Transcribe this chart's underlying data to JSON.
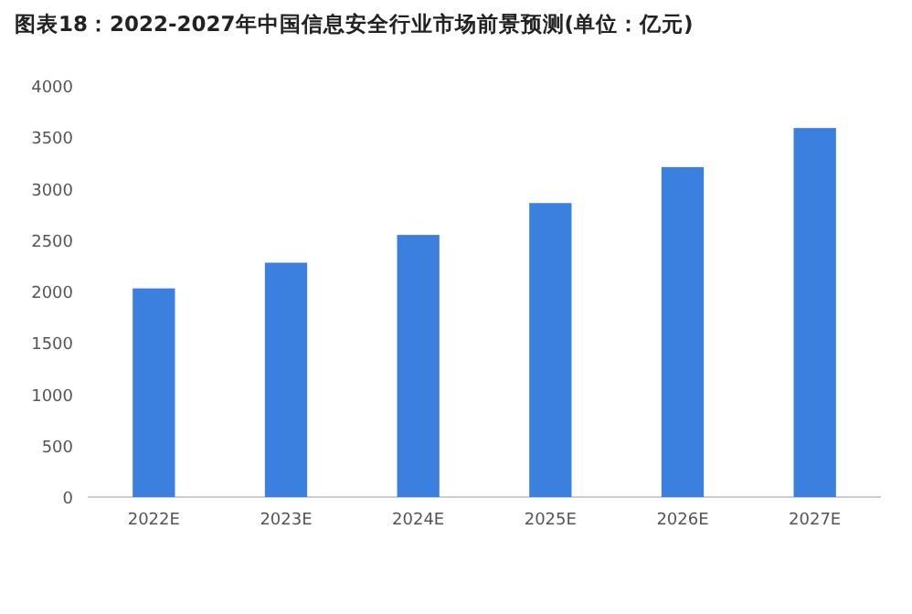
{
  "chart_data": {
    "type": "bar",
    "title": "图表18：2022-2027年中国信息安全行业市场前景预测(单位：亿元)",
    "categories": [
      "2022E",
      "2023E",
      "2024E",
      "2025E",
      "2026E",
      "2027E"
    ],
    "values": [
      2030,
      2280,
      2550,
      2860,
      3210,
      3590
    ],
    "color": "#3b80de",
    "ylim": [
      0,
      4000
    ],
    "yticks": [
      0,
      500,
      1000,
      1500,
      2000,
      2500,
      3000,
      3500,
      4000
    ],
    "grid": false
  }
}
